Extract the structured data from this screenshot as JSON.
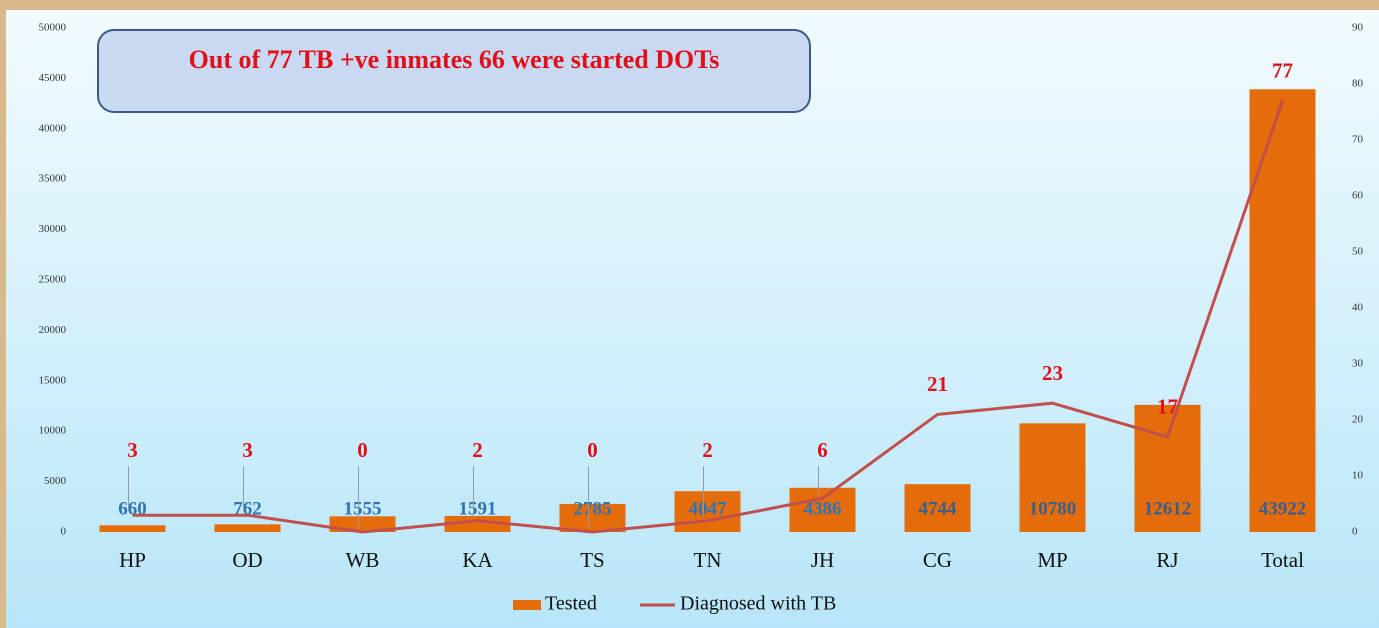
{
  "chart_data": {
    "type": "bar",
    "annotation": "Out of 77 TB +ve inmates 66 were started DOTs",
    "categories": [
      "HP",
      "OD",
      "WB",
      "KA",
      "TS",
      "TN",
      "JH",
      "CG",
      "MP",
      "RJ",
      "Total"
    ],
    "series": [
      {
        "name": "Tested",
        "type": "bar",
        "color": "#e46c0a",
        "values": [
          660,
          762,
          1555,
          1591,
          2785,
          4047,
          4386,
          4744,
          10780,
          12612,
          43922
        ]
      },
      {
        "name": "Diagnosed with TB",
        "type": "line",
        "axis": "y2",
        "color": "#c0504d",
        "values": [
          3,
          3,
          0,
          2,
          0,
          2,
          6,
          21,
          23,
          17,
          77
        ]
      }
    ],
    "ylim": [
      0,
      50000
    ],
    "yticks": [
      0,
      5000,
      10000,
      15000,
      20000,
      25000,
      30000,
      35000,
      40000,
      45000,
      50000
    ],
    "y2lim": [
      0,
      90
    ],
    "y2ticks": [
      0,
      10,
      20,
      30,
      40,
      50,
      60,
      70,
      80,
      90
    ],
    "legend": "bottom"
  }
}
